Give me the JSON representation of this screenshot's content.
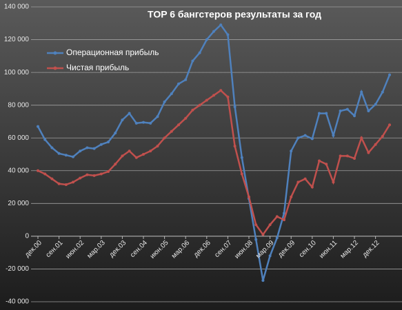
{
  "chart_data": {
    "type": "line",
    "title": "TOP 6 бангстеров результаты за год",
    "categories": [
      "дек.00",
      null,
      null,
      "сен.01",
      null,
      null,
      "июн.02",
      null,
      null,
      "мар.03",
      null,
      null,
      "дек.03",
      null,
      null,
      "сен.04",
      null,
      null,
      "июн.05",
      null,
      null,
      "мар.06",
      null,
      null,
      "дек.06",
      null,
      null,
      "сен.07",
      null,
      null,
      "июн.08",
      null,
      null,
      "мар.09",
      null,
      null,
      "дек.09",
      null,
      null,
      "сен.10",
      null,
      null,
      "июн.11",
      null,
      null,
      "мар.12",
      null,
      null,
      "дек.12",
      null,
      null
    ],
    "series": [
      {
        "name": "Операционная прибыль",
        "color": "#4f81bd",
        "values": [
          67000,
          59000,
          54000,
          50500,
          49500,
          48500,
          52000,
          54000,
          53500,
          56000,
          57500,
          63000,
          71000,
          75000,
          69000,
          69500,
          69000,
          73000,
          82000,
          87000,
          93000,
          95500,
          107000,
          112000,
          120000,
          125000,
          129000,
          123000,
          79000,
          48000,
          23000,
          -2000,
          -27000,
          -12000,
          -1000,
          14000,
          52000,
          60000,
          61500,
          59500,
          75000,
          75000,
          61500,
          76500,
          77500,
          73500,
          88000,
          76500,
          80500,
          88000,
          98500
        ]
      },
      {
        "name": "Чистая прибыль",
        "color": "#c0504d",
        "values": [
          40000,
          38000,
          35000,
          32000,
          31500,
          33000,
          35500,
          37500,
          37000,
          38000,
          39500,
          44000,
          49000,
          52000,
          48000,
          50000,
          52000,
          55000,
          60000,
          64000,
          68000,
          72000,
          77000,
          80000,
          83000,
          86000,
          89000,
          85000,
          55000,
          38000,
          24000,
          7000,
          1000,
          7000,
          12000,
          10000,
          24000,
          33000,
          35000,
          30000,
          46000,
          44000,
          33000,
          49000,
          49000,
          47500,
          60000,
          51000,
          56000,
          61000,
          68000
        ]
      }
    ],
    "ylim": [
      -40000,
      140000
    ],
    "yticks": [
      {
        "value": -40000,
        "label": "-40 000"
      },
      {
        "value": -20000,
        "label": "-20 000"
      },
      0,
      {
        "value": 20000,
        "label": "20 000"
      },
      {
        "value": 40000,
        "label": "40 000"
      },
      {
        "value": 60000,
        "label": "60 000"
      },
      {
        "value": 80000,
        "label": "80 000"
      },
      {
        "value": 100000,
        "label": "100 000"
      },
      {
        "value": 120000,
        "label": "120 000"
      },
      {
        "value": 140000,
        "label": "140 000"
      }
    ],
    "grid": true
  }
}
